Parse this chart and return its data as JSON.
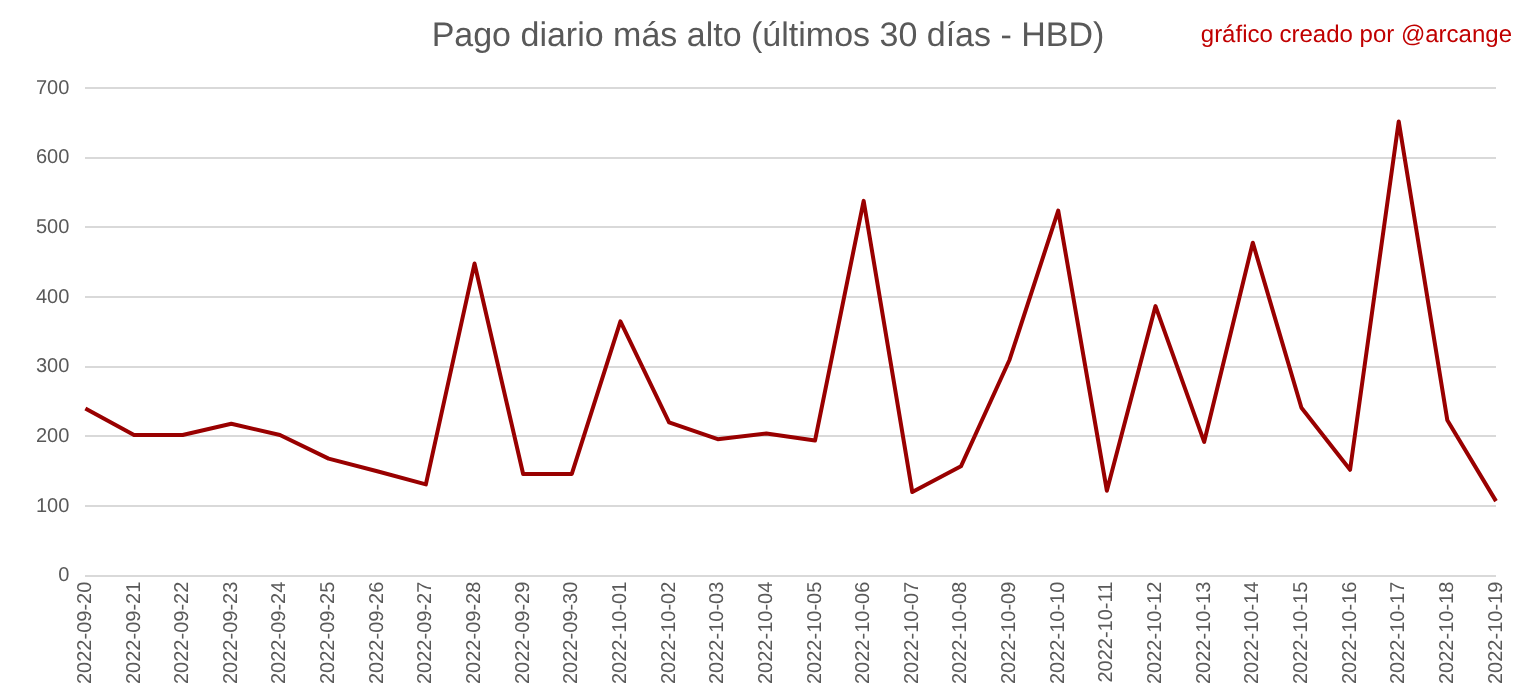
{
  "chart_data": {
    "type": "line",
    "title": "Pago diario más alto (últimos 30 días - HBD)",
    "annotations": [
      "gráfico creado por @arcange"
    ],
    "categories": [
      "2022-09-20",
      "2022-09-21",
      "2022-09-22",
      "2022-09-23",
      "2022-09-24",
      "2022-09-25",
      "2022-09-26",
      "2022-09-27",
      "2022-09-28",
      "2022-09-29",
      "2022-09-30",
      "2022-10-01",
      "2022-10-02",
      "2022-10-03",
      "2022-10-04",
      "2022-10-05",
      "2022-10-06",
      "2022-10-07",
      "2022-10-08",
      "2022-10-09",
      "2022-10-10",
      "2022-10-11",
      "2022-10-12",
      "2022-10-13",
      "2022-10-14",
      "2022-10-15",
      "2022-10-16",
      "2022-10-17",
      "2022-10-18",
      "2022-10-19"
    ],
    "series": [
      {
        "color": "#990000",
        "values": [
          240,
          202,
          202,
          218,
          202,
          168,
          150,
          131,
          448,
          146,
          146,
          365,
          220,
          196,
          204,
          194,
          538,
          120,
          157,
          310,
          524,
          122,
          387,
          192,
          478,
          241,
          152,
          652,
          223,
          107
        ]
      }
    ],
    "ylim": [
      0,
      700
    ],
    "yticks": [
      0,
      100,
      200,
      300,
      400,
      500,
      600,
      700
    ],
    "grid": "y",
    "legend": false,
    "marker": "none",
    "line_style": "solid"
  }
}
